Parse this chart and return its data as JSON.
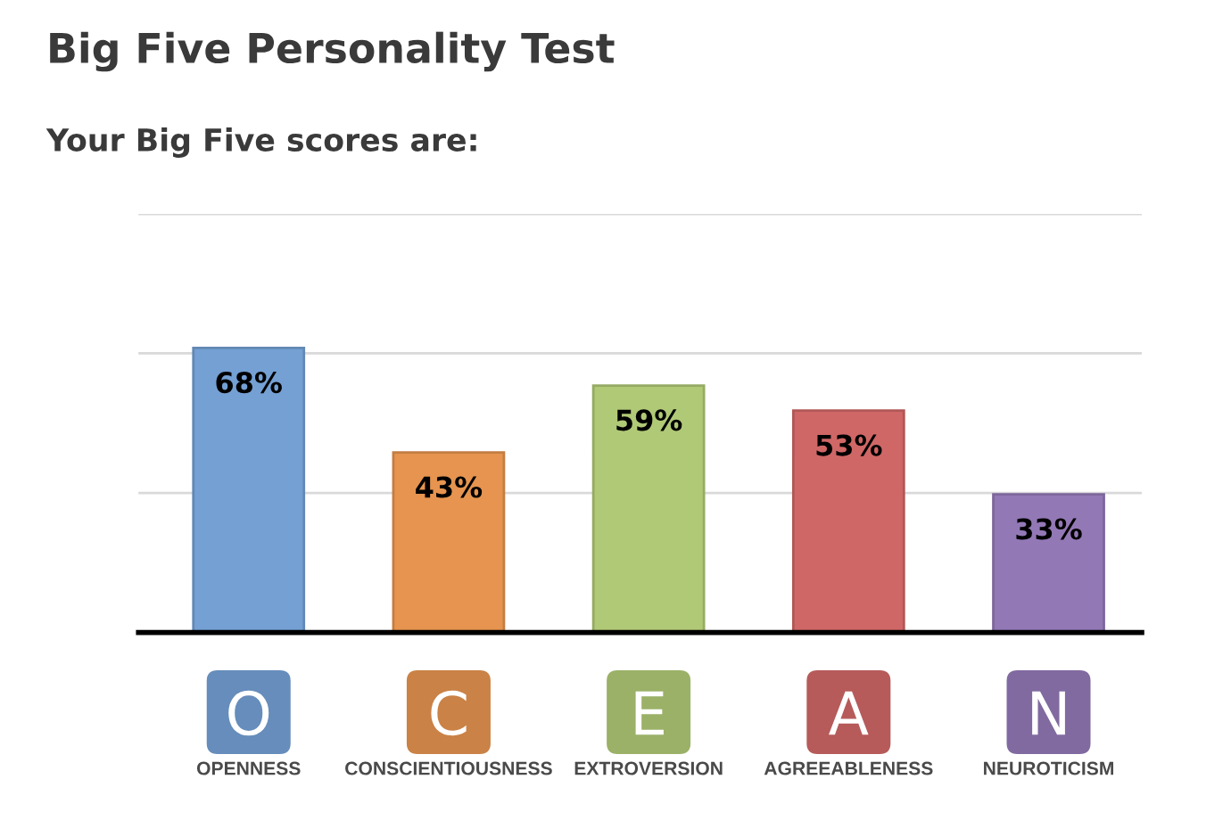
{
  "chart_data": {
    "type": "bar",
    "title": "Big Five Personality Test",
    "subtitle": "Your Big Five scores are:",
    "categories": [
      "OPENNESS",
      "CONSCIENTIOUSNESS",
      "EXTROVERSION",
      "AGREEABLENESS",
      "NEUROTICISM"
    ],
    "values": [
      68,
      43,
      59,
      53,
      33
    ],
    "value_labels": [
      "68%",
      "43%",
      "59%",
      "53%",
      "33%"
    ],
    "colors": [
      "#74a0d4",
      "#e6944f",
      "#b0c976",
      "#cf6766",
      "#9378b6"
    ],
    "ylim": [
      0,
      100
    ],
    "yticks": [
      {
        "value": 0,
        "label": null
      },
      {
        "value": 33.3,
        "label": null
      },
      {
        "value": 66.7,
        "label": null
      },
      {
        "value": 100,
        "label": null
      }
    ],
    "grid": "y",
    "tick_labels": "x",
    "annotations": [
      "O",
      "C",
      "E",
      "A",
      "N"
    ]
  }
}
